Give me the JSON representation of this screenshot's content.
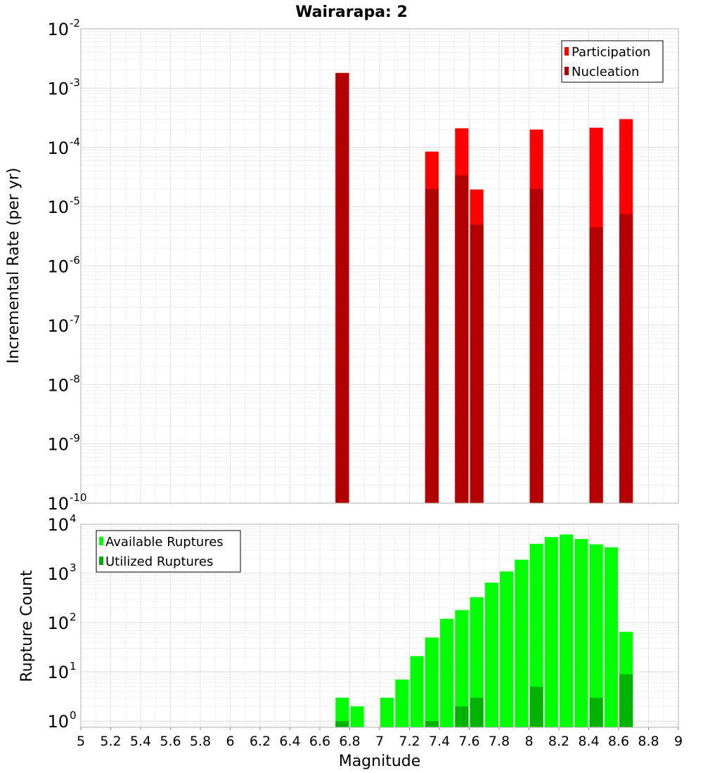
{
  "chart_data": [
    {
      "type": "bar",
      "title": "Wairarapa: 2",
      "ylabel": "Incremental Rate (per yr)",
      "yscale": "log",
      "ylim": [
        1e-10,
        0.01
      ],
      "xlim": [
        5,
        9
      ],
      "grid": true,
      "legend_position": "top-right",
      "series": [
        {
          "name": "Participation",
          "color": "#ff0000",
          "x": [
            6.75,
            7.35,
            7.55,
            7.65,
            8.05,
            8.45,
            8.65
          ],
          "values": [
            0.0018,
            8.5e-05,
            0.00021,
            1.95e-05,
            0.0002,
            0.000215,
            0.0003
          ]
        },
        {
          "name": "Nucleation",
          "color": "#b30000",
          "x": [
            6.75,
            7.35,
            7.55,
            7.65,
            8.05,
            8.45,
            8.65
          ],
          "values": [
            0.0018,
            2e-05,
            3.4e-05,
            5e-06,
            2e-05,
            4.5e-06,
            7.5e-06
          ]
        }
      ],
      "ytick_exponents": [
        -10,
        -9,
        -8,
        -7,
        -6,
        -5,
        -4,
        -3,
        -2
      ]
    },
    {
      "type": "bar",
      "xlabel": "Magnitude",
      "ylabel": "Rupture Count",
      "yscale": "log",
      "ylim": [
        0.75,
        10000
      ],
      "xlim": [
        5,
        9
      ],
      "grid": true,
      "legend_position": "top-left",
      "series": [
        {
          "name": "Available Ruptures",
          "color": "#00ff00",
          "x": [
            6.75,
            6.85,
            7.05,
            7.15,
            7.25,
            7.35,
            7.45,
            7.55,
            7.65,
            7.75,
            7.85,
            7.95,
            8.05,
            8.15,
            8.25,
            8.35,
            8.45,
            8.55,
            8.65
          ],
          "values": [
            3,
            2,
            3,
            7,
            21,
            50,
            120,
            180,
            330,
            650,
            1100,
            1900,
            4000,
            5500,
            6200,
            5000,
            3900,
            3400,
            65
          ]
        },
        {
          "name": "Utilized Ruptures",
          "color": "#00b300",
          "x": [
            6.75,
            7.35,
            7.55,
            7.65,
            8.05,
            8.45,
            8.65
          ],
          "values": [
            1,
            1,
            2,
            3,
            5,
            3,
            9
          ]
        }
      ],
      "ytick_exponents": [
        0,
        1,
        2,
        3,
        4
      ],
      "xticks": [
        "5",
        "5.2",
        "5.4",
        "5.6",
        "5.8",
        "6",
        "6.2",
        "6.4",
        "6.6",
        "6.8",
        "7",
        "7.2",
        "7.4",
        "7.6",
        "7.8",
        "8",
        "8.2",
        "8.4",
        "8.6",
        "8.8",
        "9"
      ]
    }
  ]
}
